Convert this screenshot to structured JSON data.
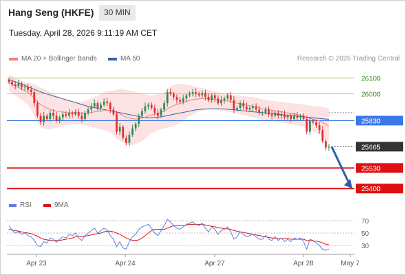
{
  "header": {
    "title": "Hang Seng (HKFE)",
    "interval": "30 MIN",
    "datetime": "Tuesday, April 28, 2026 9:11:19 AM CET"
  },
  "legend": {
    "ma20": "MA 20 + Bollinger Bands",
    "ma50": "MA 50",
    "source": "Research © 2026 Trading Central",
    "rsi": "RSI",
    "rsi_ma": "9MA"
  },
  "colors": {
    "ma20": "#f08080",
    "ma50": "#3f5fa8",
    "band_fill": "#fbd5d5",
    "candle_up": "#2e8b57",
    "candle_down": "#e03030",
    "resistance": "#9acd6a",
    "pivot": "#3a78e8",
    "support": "#e01010",
    "current": "#333333",
    "arrow": "#2f5fa8",
    "rsi": "#5b7fe0",
    "rsi_ma": "#e01010"
  },
  "chart_data": {
    "type": "candlestick",
    "x_ticks": [
      "Apr 23",
      "Apr 24",
      "Apr 27",
      "Apr 28",
      "May 7"
    ],
    "y_range": [
      25340,
      26180
    ],
    "levels": [
      {
        "label": "26100",
        "value": 26100,
        "kind": "resistance"
      },
      {
        "label": "26000",
        "value": 26000,
        "kind": "resistance"
      },
      {
        "label": "25830",
        "value": 25830,
        "kind": "pivot"
      },
      {
        "label": "25665",
        "value": 25665,
        "kind": "current"
      },
      {
        "label": "25530",
        "value": 25530,
        "kind": "support"
      },
      {
        "label": "25400",
        "value": 25400,
        "kind": "support"
      }
    ],
    "close": [
      26075,
      26060,
      26050,
      26065,
      26040,
      26045,
      26025,
      26010,
      25940,
      25860,
      25820,
      25860,
      25840,
      25880,
      25860,
      25830,
      25850,
      25870,
      25860,
      25880,
      25870,
      25885,
      25860,
      25840,
      25880,
      25900,
      25920,
      25940,
      25910,
      25930,
      25950,
      25940,
      25900,
      25870,
      25760,
      25790,
      25720,
      25690,
      25740,
      25780,
      25810,
      25860,
      25890,
      25920,
      25930,
      25910,
      25880,
      25860,
      25900,
      25940,
      26010,
      26000,
      25980,
      25960,
      25950,
      25970,
      25990,
      26000,
      26010,
      26000,
      25990,
      26005,
      25980,
      25960,
      25990,
      25970,
      25940,
      25960,
      25970,
      25990,
      25960,
      25900,
      25910,
      25940,
      25920,
      25900,
      25910,
      25920,
      25900,
      25880,
      25880,
      25900,
      25870,
      25860,
      25880,
      25860,
      25870,
      25850,
      25860,
      25840,
      25860,
      25850,
      25860,
      25840,
      25760,
      25830,
      25820,
      25800,
      25770,
      25700,
      25660,
      25665
    ],
    "ma20": [
      26070,
      26060,
      26050,
      26040,
      26030,
      26020,
      26010,
      25990,
      25970,
      25950,
      25930,
      25920,
      25910,
      25900,
      25895,
      25890,
      25885,
      25885,
      25880,
      25880,
      25880,
      25880,
      25878,
      25875,
      25875,
      25878,
      25882,
      25886,
      25888,
      25890,
      25893,
      25895,
      25895,
      25890,
      25880,
      25872,
      25862,
      25852,
      25846,
      25842,
      25840,
      25842,
      25846,
      25852,
      25860,
      25866,
      25870,
      25875,
      25882,
      25892,
      25905,
      25915,
      25925,
      25932,
      25938,
      25945,
      25952,
      25958,
      25962,
      25966,
      25968,
      25970,
      25970,
      25968,
      25966,
      25964,
      25960,
      25958,
      25956,
      25954,
      25950,
      25945,
      25940,
      25937,
      25933,
      25928,
      25924,
      25920,
      25916,
      25910,
      25905,
      25902,
      25900,
      25896,
      25892,
      25888,
      25885,
      25882,
      25878,
      25874,
      25872,
      25868,
      25864,
      25860,
      25850,
      25845,
      25840,
      25834,
      25828,
      25818,
      25806,
      25795
    ],
    "bb_upper": [
      26120,
      26110,
      26100,
      26090,
      26080,
      26075,
      26070,
      26065,
      26060,
      26050,
      26040,
      26030,
      26020,
      26010,
      26000,
      25990,
      25980,
      25970,
      25965,
      25960,
      25955,
      25950,
      25948,
      25950,
      25955,
      25962,
      25970,
      25980,
      25990,
      26000,
      26008,
      26015,
      26018,
      26020,
      26025,
      26030,
      26030,
      26025,
      26020,
      26015,
      26010,
      26005,
      26000,
      25995,
      25990,
      25990,
      25992,
      25995,
      26000,
      26010,
      26030,
      26045,
      26055,
      26060,
      26062,
      26060,
      26058,
      26055,
      26050,
      26045,
      26040,
      26035,
      26030,
      26025,
      26020,
      26015,
      26010,
      26005,
      26000,
      25998,
      25995,
      25992,
      25990,
      25988,
      25985,
      25982,
      25980,
      25978,
      25975,
      25970,
      25965,
      25960,
      25958,
      25955,
      25952,
      25950,
      25948,
      25945,
      25942,
      25940,
      25938,
      25936,
      25934,
      25932,
      25928,
      25925,
      25922,
      25920,
      25918,
      25915,
      25912,
      25908
    ],
    "bb_lower": [
      26020,
      26005,
      25990,
      25975,
      25960,
      25945,
      25930,
      25900,
      25860,
      25820,
      25790,
      25780,
      25775,
      25775,
      25780,
      25785,
      25790,
      25795,
      25800,
      25805,
      25808,
      25810,
      25810,
      25805,
      25800,
      25795,
      25790,
      25785,
      25780,
      25775,
      25770,
      25765,
      25755,
      25740,
      25715,
      25700,
      25690,
      25680,
      25675,
      25675,
      25680,
      25690,
      25700,
      25715,
      25735,
      25750,
      25760,
      25770,
      25775,
      25780,
      25785,
      25790,
      25795,
      25805,
      25815,
      25830,
      25845,
      25860,
      25870,
      25880,
      25888,
      25895,
      25898,
      25900,
      25900,
      25898,
      25895,
      25892,
      25890,
      25888,
      25885,
      25880,
      25875,
      25870,
      25865,
      25860,
      25855,
      25850,
      25845,
      25840,
      25835,
      25832,
      25830,
      25828,
      25825,
      25822,
      25818,
      25815,
      25812,
      25808,
      25805,
      25800,
      25795,
      25790,
      25778,
      25770,
      25762,
      25752,
      25742,
      25725,
      25705,
      25690
    ],
    "ma50": [
      26090,
      26082,
      26075,
      26068,
      26060,
      26052,
      26044,
      26036,
      26028,
      26020,
      26012,
      26005,
      25998,
      25992,
      25986,
      25980,
      25974,
      25968,
      25962,
      25956,
      25950,
      25944,
      25938,
      25932,
      25926,
      25920,
      25916,
      25912,
      25908,
      25904,
      25900,
      25896,
      25892,
      25888,
      25884,
      25880,
      25876,
      25872,
      25868,
      25864,
      25860,
      25856,
      25852,
      25850,
      25848,
      25848,
      25850,
      25852,
      25854,
      25858,
      25862,
      25866,
      25870,
      25874,
      25878,
      25882,
      25886,
      25890,
      25894,
      25898,
      25900,
      25902,
      25903,
      25904,
      25905,
      25905,
      25905,
      25904,
      25903,
      25902,
      25900,
      25898,
      25896,
      25894,
      25892,
      25890,
      25888,
      25886,
      25884,
      25882,
      25880,
      25878,
      25876,
      25874,
      25872,
      25870,
      25868,
      25866,
      25864,
      25862,
      25860,
      25858,
      25856,
      25854,
      25852,
      25850,
      25848,
      25846,
      25844,
      25842,
      25840,
      25838
    ],
    "forecast": [
      {
        "from": 25665,
        "to": 25400
      }
    ],
    "rsi": {
      "y_ticks": [
        70,
        50,
        30
      ],
      "y_range": [
        20,
        80
      ],
      "values": [
        62,
        55,
        50,
        52,
        48,
        50,
        46,
        44,
        38,
        30,
        28,
        36,
        34,
        42,
        40,
        35,
        40,
        44,
        42,
        48,
        46,
        50,
        42,
        38,
        46,
        50,
        54,
        58,
        50,
        54,
        58,
        55,
        46,
        40,
        28,
        36,
        26,
        24,
        36,
        44,
        48,
        56,
        60,
        62,
        64,
        58,
        50,
        46,
        54,
        62,
        72,
        68,
        62,
        58,
        56,
        60,
        64,
        66,
        68,
        64,
        62,
        66,
        58,
        52,
        60,
        56,
        48,
        54,
        56,
        60,
        52,
        40,
        44,
        52,
        48,
        44,
        46,
        48,
        44,
        40,
        40,
        46,
        40,
        38,
        44,
        38,
        42,
        36,
        40,
        36,
        42,
        40,
        42,
        36,
        24,
        40,
        38,
        34,
        30,
        24,
        22,
        24
      ],
      "ma": [
        56,
        55,
        54,
        53,
        52,
        51,
        50,
        49,
        47,
        45,
        42,
        40,
        39,
        38,
        38,
        38,
        38,
        39,
        40,
        41,
        42,
        44,
        45,
        45,
        45,
        46,
        47,
        48,
        49,
        50,
        52,
        53,
        53,
        52,
        50,
        48,
        45,
        42,
        40,
        38,
        38,
        39,
        42,
        46,
        50,
        54,
        56,
        56,
        56,
        56,
        58,
        60,
        62,
        62,
        62,
        62,
        63,
        64,
        64,
        64,
        64,
        64,
        63,
        62,
        61,
        60,
        59,
        58,
        57,
        57,
        56,
        54,
        53,
        52,
        51,
        50,
        49,
        48,
        47,
        46,
        45,
        44,
        43,
        42,
        42,
        41,
        41,
        41,
        41,
        40,
        40,
        40,
        40,
        40,
        38,
        38,
        37,
        37,
        36,
        34,
        32,
        31
      ]
    }
  }
}
